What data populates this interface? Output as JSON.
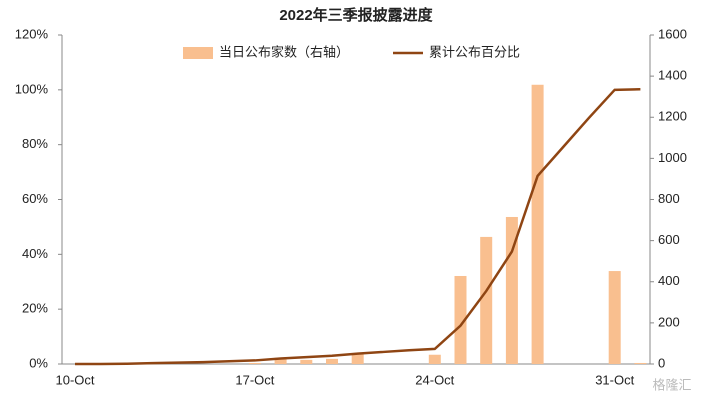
{
  "chart_data": {
    "type": "bar-line",
    "title": "2022年三季报披露进度",
    "categories": [
      "10-Oct",
      null,
      null,
      null,
      null,
      null,
      null,
      "17-Oct",
      null,
      null,
      null,
      null,
      null,
      null,
      "24-Oct",
      null,
      null,
      null,
      null,
      null,
      null,
      "31-Oct",
      null
    ],
    "series": [
      {
        "name": "当日公布家数（右轴）",
        "type": "bar",
        "axis": "y2",
        "color": "#f9bf8f",
        "values": [
          0,
          0,
          0,
          0,
          0,
          0,
          0,
          5,
          30,
          20,
          25,
          50,
          0,
          0,
          45,
          428,
          618,
          715,
          1358,
          0,
          0,
          452,
          5
        ]
      },
      {
        "name": "累计公布百分比",
        "type": "line",
        "color": "#8f4513",
        "values": [
          0,
          0,
          0.1,
          0.3,
          0.5,
          0.7,
          1,
          1.3,
          2,
          2.5,
          3,
          3.8,
          4.4,
          5,
          5.5,
          14,
          26.6,
          41,
          68.6,
          79.2,
          89.8,
          100,
          100.2
        ]
      }
    ],
    "ylim": [
      0,
      120
    ],
    "yticks": [
      {
        "value": 0,
        "label": "0%"
      },
      {
        "value": 20,
        "label": "20%"
      },
      {
        "value": 40,
        "label": "40%"
      },
      {
        "value": 60,
        "label": "60%"
      },
      {
        "value": 80,
        "label": "80%"
      },
      {
        "value": 100,
        "label": "100%"
      },
      {
        "value": 120,
        "label": "120%"
      }
    ],
    "y2lim": [
      0,
      1600
    ],
    "y2ticks": [
      0,
      200,
      400,
      600,
      800,
      1000,
      1200,
      1400,
      1600
    ],
    "watermark": "格隆汇"
  }
}
